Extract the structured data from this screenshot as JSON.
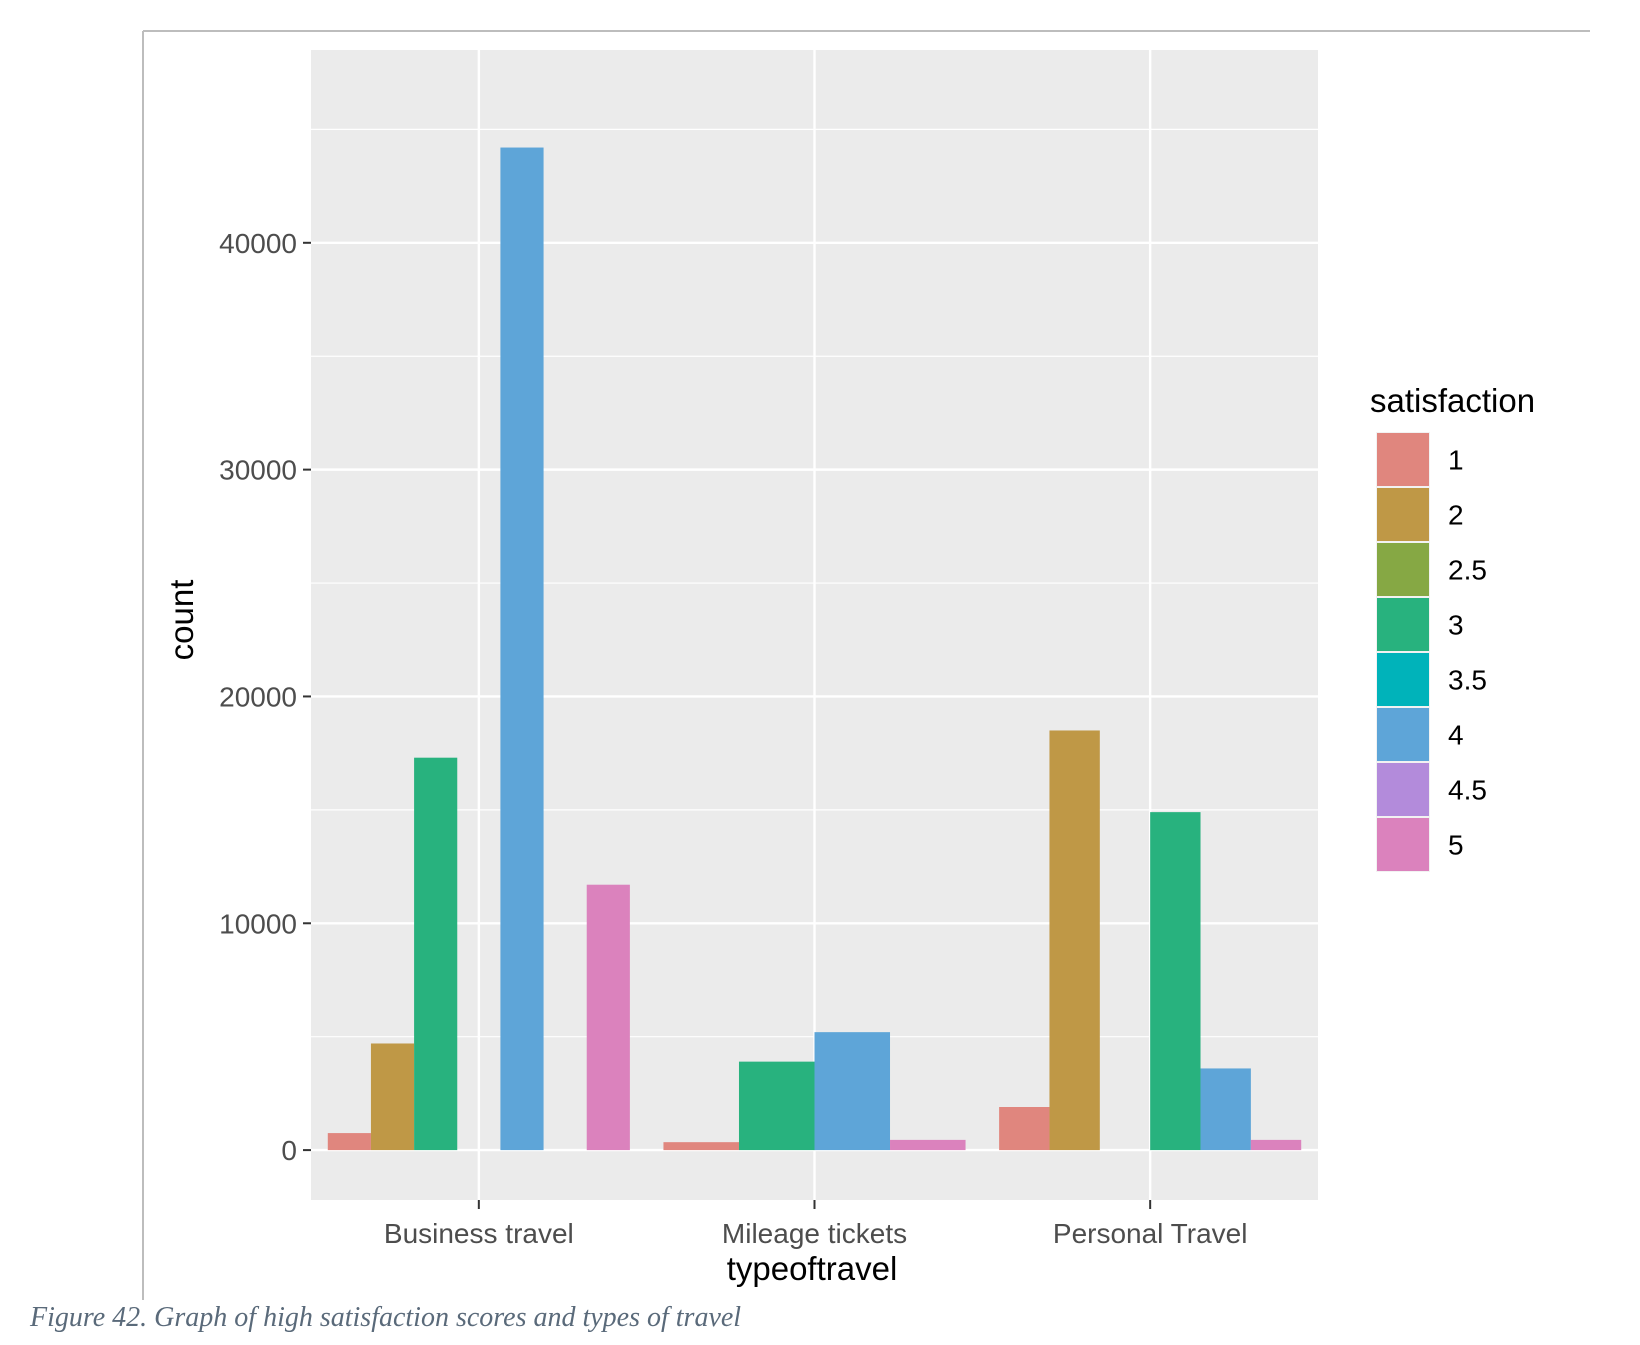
{
  "chart_data": {
    "type": "bar",
    "xlabel": "typeoftravel",
    "ylabel": "count",
    "categories": [
      "Business travel",
      "Mileage tickets",
      "Personal Travel"
    ],
    "ylim": [
      -2200,
      48500
    ],
    "yticks": [
      0,
      10000,
      20000,
      30000,
      40000
    ],
    "grid": true,
    "legend": {
      "title": "satisfaction",
      "placement": "right",
      "entries": [
        {
          "label": "1",
          "color": "#E0867E"
        },
        {
          "label": "2",
          "color": "#BF9846"
        },
        {
          "label": "2.5",
          "color": "#86A844"
        },
        {
          "label": "3",
          "color": "#28B27E"
        },
        {
          "label": "3.5",
          "color": "#00B3BA"
        },
        {
          "label": "4",
          "color": "#5EA5D8"
        },
        {
          "label": "4.5",
          "color": "#B38BDB"
        },
        {
          "label": "5",
          "color": "#DB82BD"
        }
      ]
    },
    "groups": [
      {
        "category": "Business travel",
        "bars": [
          {
            "level": "1",
            "value": 750
          },
          {
            "level": "2",
            "value": 4700
          },
          {
            "level": "3",
            "value": 17300
          },
          {
            "level": "3.5",
            "value": 0
          },
          {
            "level": "4",
            "value": 44200
          },
          {
            "level": "4.5",
            "value": 0
          },
          {
            "level": "5",
            "value": 11700
          }
        ]
      },
      {
        "category": "Mileage tickets",
        "bars": [
          {
            "level": "1",
            "value": 350
          },
          {
            "level": "3",
            "value": 3900
          },
          {
            "level": "4",
            "value": 5200
          },
          {
            "level": "5",
            "value": 450
          }
        ]
      },
      {
        "category": "Personal Travel",
        "bars": [
          {
            "level": "1",
            "value": 1900
          },
          {
            "level": "2",
            "value": 18500
          },
          {
            "level": "2.5",
            "value": 0
          },
          {
            "level": "3",
            "value": 14900
          },
          {
            "level": "4",
            "value": 3600
          },
          {
            "level": "5",
            "value": 450
          }
        ]
      }
    ]
  },
  "caption": "Figure 42. Graph of high satisfaction scores and types of travel"
}
